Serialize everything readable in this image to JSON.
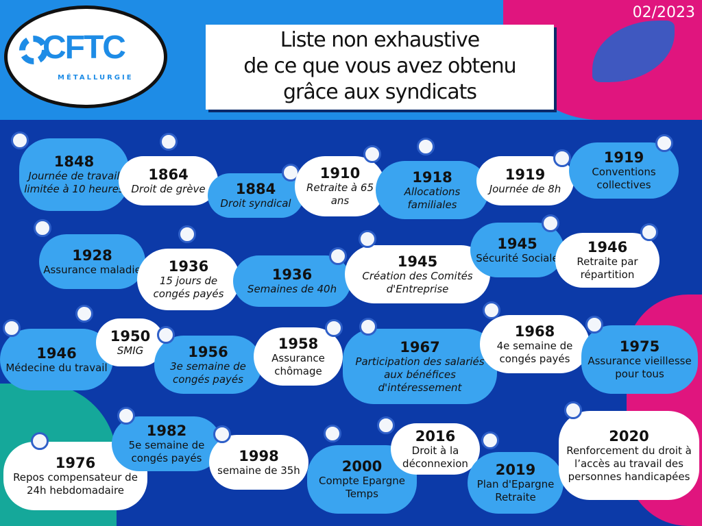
{
  "header": {
    "logo": "CFTC",
    "logo_sub": "MÉTALLURGIE",
    "title_lines": [
      "Liste non exhaustive",
      "de ce que vous avez obtenu",
      "grâce aux syndicats"
    ],
    "date": "02/2023"
  },
  "colors": {
    "background": "#0c3aa8",
    "card_blue": "#3aa4f0",
    "card_white": "#ffffff",
    "pink": "#e0157e",
    "teal": "#15a89a"
  },
  "items": [
    {
      "year": "1848",
      "text": "Journée de travail limitée à 10 heures",
      "icon": "alarm-clock-icon"
    },
    {
      "year": "1864",
      "text": "Droit de grève",
      "icon": "raised-fists-icon"
    },
    {
      "year": "1884",
      "text": "Droit syndical",
      "icon": "notebook-icon"
    },
    {
      "year": "1910",
      "text": "Retraite à 65 ans",
      "icon": "winged-clock-icon"
    },
    {
      "year": "1918",
      "text": "Allocations familiales",
      "icon": "family-icon"
    },
    {
      "year": "1919",
      "text": "Journée de 8h",
      "icon": "clock-icon"
    },
    {
      "year": "1919",
      "text": "Conventions collectives",
      "icon": "documents-icon"
    },
    {
      "year": "1928",
      "text": "Assurance maladie",
      "icon": "heart-hands-icon"
    },
    {
      "year": "1936",
      "text": "15 jours de congés payés",
      "icon": "suitcase-icon"
    },
    {
      "year": "1936",
      "text": "Semaines de 40h",
      "icon": "clock-icon"
    },
    {
      "year": "1945",
      "text": "Création des Comités d'Entreprise",
      "icon": "photos-icon"
    },
    {
      "year": "1945",
      "text": "Sécurité Sociale",
      "icon": "heartbeat-icon"
    },
    {
      "year": "1946",
      "text": "Retraite par répartition",
      "icon": "winged-clock-icon"
    },
    {
      "year": "1946",
      "text": "Médecine du travail",
      "icon": "first-aid-kit-icon"
    },
    {
      "year": "1950",
      "text": "SMIG",
      "icon": "money-icon"
    },
    {
      "year": "1956",
      "text": "3e semaine de congés payés",
      "icon": "calendar-icon"
    },
    {
      "year": "1958",
      "text": "Assurance chômage",
      "icon": "shield-check-icon"
    },
    {
      "year": "1967",
      "text": "Participation des salariés aux bénéfices d'intéressement",
      "icon": "money-icon"
    },
    {
      "year": "1968",
      "text": "4e semaine de congés payés",
      "icon": "calendar-icon"
    },
    {
      "year": "1975",
      "text": "Assurance vieillesse pour tous",
      "icon": "shield-check-icon"
    },
    {
      "year": "1976",
      "text": "Repos compensateur de 24h hebdomadaire",
      "icon": "shield-check-icon"
    },
    {
      "year": "1982",
      "text": "5e semaine de congés payés",
      "icon": "calendar-icon"
    },
    {
      "year": "1998",
      "text": "semaine de 35h",
      "icon": "alarm-clock-icon"
    },
    {
      "year": "2000",
      "text": "Compte Epargne Temps",
      "icon": "piggy-bank-icon"
    },
    {
      "year": "2016",
      "text": "Droit à la déconnexion",
      "icon": "no-laptop-icon"
    },
    {
      "year": "2019",
      "text": "Plan d'Epargne Retraite",
      "icon": "piggy-bank-icon"
    },
    {
      "year": "2020",
      "text": "Renforcement du droit à l’accès au travail des personnes handicapées",
      "icon": "wheelchair-icon"
    }
  ]
}
